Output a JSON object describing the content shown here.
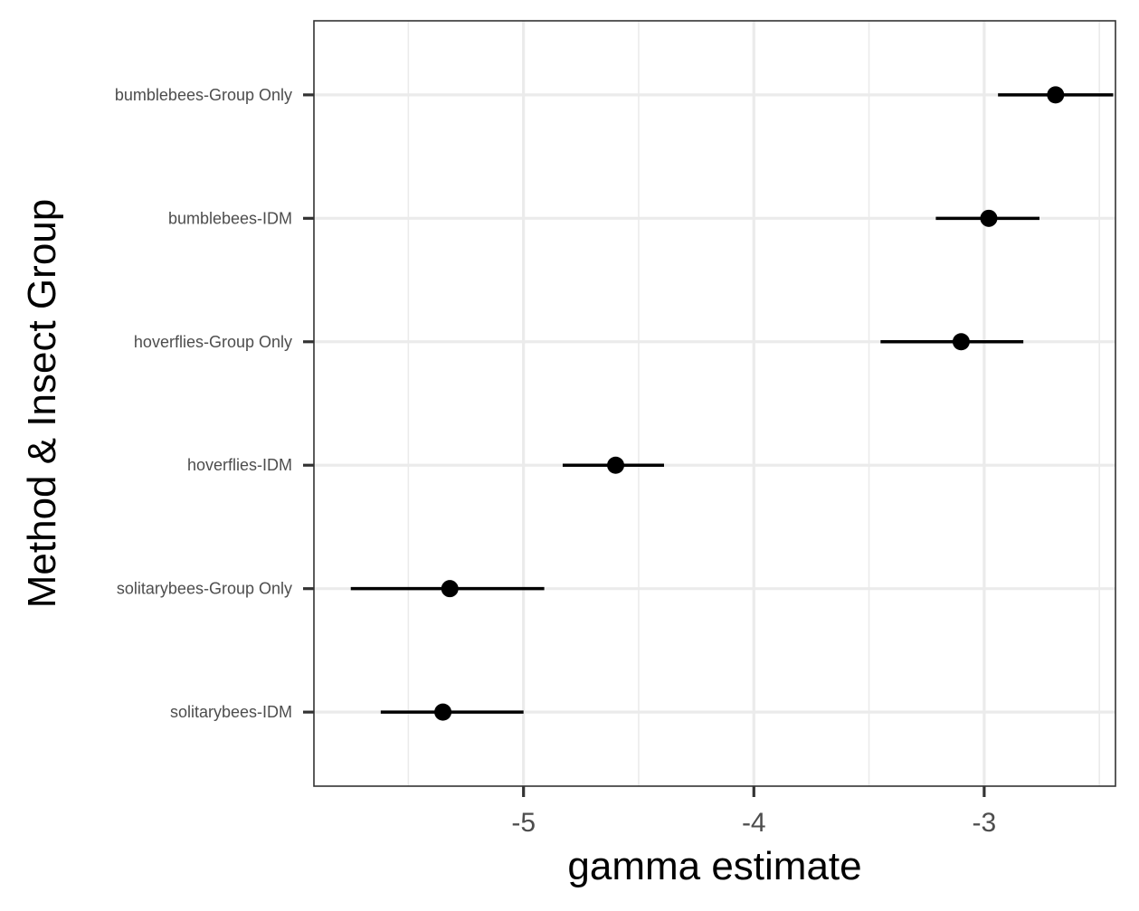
{
  "chart_data": {
    "type": "scatter",
    "subtype": "point-range",
    "xlabel": "gamma estimate",
    "ylabel": "Method & Insect Group",
    "xlim": [
      -5.91,
      -2.43
    ],
    "x_ticks": [
      -5,
      -4,
      -3
    ],
    "x_tick_labels": [
      "-5",
      "-4",
      "-3"
    ],
    "x_minor_gridlines": [
      -5.5,
      -4.5,
      -3.5,
      -2.5
    ],
    "grid": true,
    "legend": "none",
    "colors": {
      "point": "#000000",
      "gridline": "#ebebeb",
      "panel_border": "#333333",
      "tick_text": "#4d4d4d"
    },
    "categories": [
      "bumblebees-Group Only",
      "bumblebees-IDM",
      "hoverflies-Group Only",
      "hoverflies-IDM",
      "solitarybees-Group Only",
      "solitarybees-IDM"
    ],
    "points": [
      {
        "category": "bumblebees-Group Only",
        "estimate": -2.69,
        "lower": -2.94,
        "upper": -2.44
      },
      {
        "category": "bumblebees-IDM",
        "estimate": -2.98,
        "lower": -3.21,
        "upper": -2.76
      },
      {
        "category": "hoverflies-Group Only",
        "estimate": -3.1,
        "lower": -3.45,
        "upper": -2.83
      },
      {
        "category": "hoverflies-IDM",
        "estimate": -4.6,
        "lower": -4.83,
        "upper": -4.39
      },
      {
        "category": "solitarybees-Group Only",
        "estimate": -5.32,
        "lower": -5.75,
        "upper": -4.91
      },
      {
        "category": "solitarybees-IDM",
        "estimate": -5.35,
        "lower": -5.62,
        "upper": -5.0
      }
    ]
  }
}
